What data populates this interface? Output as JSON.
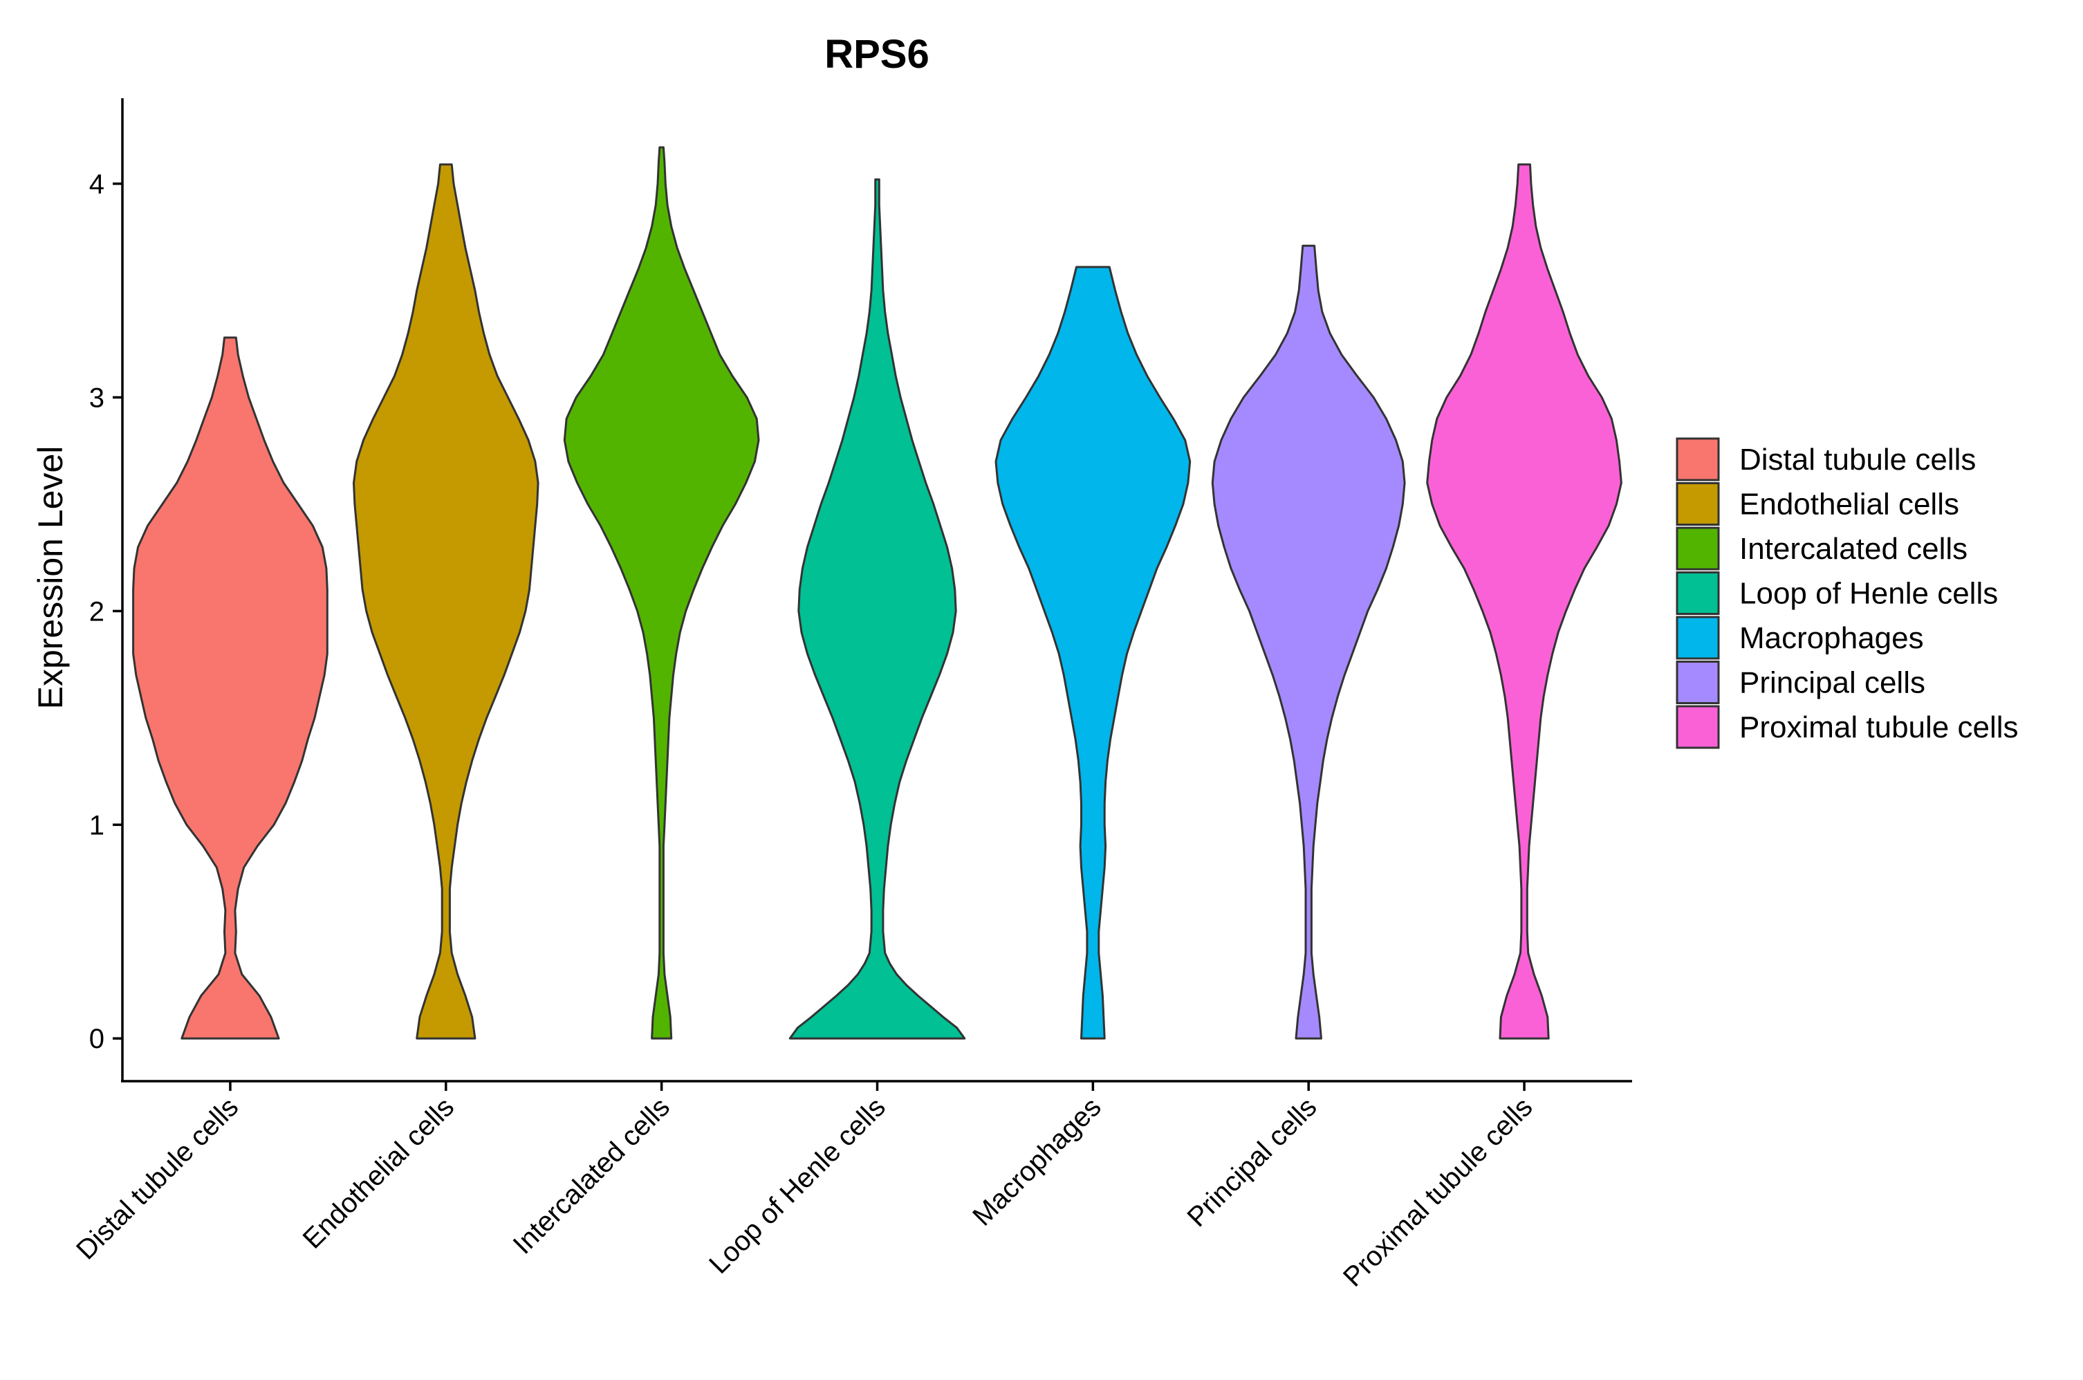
{
  "chart_data": {
    "type": "violin",
    "title": "RPS6",
    "xlabel": "",
    "ylabel": "Expression Level",
    "ylim": [
      -0.2,
      4.4
    ],
    "yticks": [
      0,
      1,
      2,
      3,
      4
    ],
    "categories": [
      "Distal tubule cells",
      "Endothelial cells",
      "Intercalated cells",
      "Loop of Henle cells",
      "Macrophages",
      "Principal cells",
      "Proximal tubule cells"
    ],
    "colors": [
      "#F8766D",
      "#C49A00",
      "#53B400",
      "#00C094",
      "#00B6EB",
      "#A58AFF",
      "#FB61D7"
    ],
    "legend": {
      "position": "right",
      "entries": [
        "Distal tubule cells",
        "Endothelial cells",
        "Intercalated cells",
        "Loop of Henle cells",
        "Macrophages",
        "Principal cells",
        "Proximal tubule cells"
      ]
    },
    "series": [
      {
        "name": "Distal tubule cells",
        "max": 3.28,
        "profile": [
          [
            0,
            0.5
          ],
          [
            0.1,
            0.42
          ],
          [
            0.2,
            0.3
          ],
          [
            0.3,
            0.12
          ],
          [
            0.4,
            0.05
          ],
          [
            0.5,
            0.06
          ],
          [
            0.6,
            0.05
          ],
          [
            0.7,
            0.08
          ],
          [
            0.8,
            0.14
          ],
          [
            0.9,
            0.28
          ],
          [
            1.0,
            0.45
          ],
          [
            1.1,
            0.57
          ],
          [
            1.2,
            0.66
          ],
          [
            1.3,
            0.74
          ],
          [
            1.4,
            0.8
          ],
          [
            1.5,
            0.87
          ],
          [
            1.6,
            0.92
          ],
          [
            1.7,
            0.97
          ],
          [
            1.8,
            1.0
          ],
          [
            1.9,
            1.0
          ],
          [
            2.0,
            1.0
          ],
          [
            2.1,
            1.0
          ],
          [
            2.2,
            0.99
          ],
          [
            2.3,
            0.95
          ],
          [
            2.4,
            0.85
          ],
          [
            2.5,
            0.7
          ],
          [
            2.6,
            0.55
          ],
          [
            2.7,
            0.44
          ],
          [
            2.8,
            0.35
          ],
          [
            2.9,
            0.27
          ],
          [
            3.0,
            0.19
          ],
          [
            3.1,
            0.13
          ],
          [
            3.2,
            0.08
          ],
          [
            3.28,
            0.06
          ]
        ]
      },
      {
        "name": "Endothelial cells",
        "max": 4.09,
        "profile": [
          [
            0,
            0.3
          ],
          [
            0.1,
            0.27
          ],
          [
            0.2,
            0.2
          ],
          [
            0.3,
            0.12
          ],
          [
            0.4,
            0.06
          ],
          [
            0.5,
            0.04
          ],
          [
            0.6,
            0.04
          ],
          [
            0.7,
            0.04
          ],
          [
            0.8,
            0.06
          ],
          [
            0.9,
            0.09
          ],
          [
            1.0,
            0.12
          ],
          [
            1.1,
            0.16
          ],
          [
            1.2,
            0.21
          ],
          [
            1.3,
            0.27
          ],
          [
            1.4,
            0.34
          ],
          [
            1.5,
            0.42
          ],
          [
            1.6,
            0.51
          ],
          [
            1.7,
            0.6
          ],
          [
            1.8,
            0.68
          ],
          [
            1.9,
            0.76
          ],
          [
            2.0,
            0.82
          ],
          [
            2.1,
            0.86
          ],
          [
            2.2,
            0.88
          ],
          [
            2.3,
            0.9
          ],
          [
            2.4,
            0.92
          ],
          [
            2.5,
            0.94
          ],
          [
            2.6,
            0.95
          ],
          [
            2.7,
            0.92
          ],
          [
            2.8,
            0.85
          ],
          [
            2.9,
            0.75
          ],
          [
            3.0,
            0.64
          ],
          [
            3.1,
            0.53
          ],
          [
            3.2,
            0.45
          ],
          [
            3.3,
            0.39
          ],
          [
            3.4,
            0.34
          ],
          [
            3.5,
            0.3
          ],
          [
            3.6,
            0.25
          ],
          [
            3.7,
            0.2
          ],
          [
            3.8,
            0.16
          ],
          [
            3.9,
            0.12
          ],
          [
            4.0,
            0.08
          ],
          [
            4.09,
            0.06
          ]
        ]
      },
      {
        "name": "Intercalated cells",
        "max": 4.17,
        "profile": [
          [
            0,
            0.1
          ],
          [
            0.1,
            0.09
          ],
          [
            0.2,
            0.06
          ],
          [
            0.3,
            0.03
          ],
          [
            0.4,
            0.02
          ],
          [
            0.5,
            0.02
          ],
          [
            0.6,
            0.02
          ],
          [
            0.7,
            0.02
          ],
          [
            0.8,
            0.02
          ],
          [
            0.9,
            0.02
          ],
          [
            1.0,
            0.03
          ],
          [
            1.1,
            0.04
          ],
          [
            1.2,
            0.05
          ],
          [
            1.3,
            0.06
          ],
          [
            1.4,
            0.07
          ],
          [
            1.5,
            0.08
          ],
          [
            1.6,
            0.1
          ],
          [
            1.7,
            0.12
          ],
          [
            1.8,
            0.15
          ],
          [
            1.9,
            0.19
          ],
          [
            2.0,
            0.25
          ],
          [
            2.1,
            0.33
          ],
          [
            2.2,
            0.42
          ],
          [
            2.3,
            0.52
          ],
          [
            2.4,
            0.63
          ],
          [
            2.5,
            0.76
          ],
          [
            2.6,
            0.87
          ],
          [
            2.7,
            0.96
          ],
          [
            2.8,
            1.0
          ],
          [
            2.9,
            0.98
          ],
          [
            3.0,
            0.88
          ],
          [
            3.1,
            0.73
          ],
          [
            3.2,
            0.6
          ],
          [
            3.3,
            0.51
          ],
          [
            3.4,
            0.42
          ],
          [
            3.5,
            0.33
          ],
          [
            3.6,
            0.24
          ],
          [
            3.7,
            0.16
          ],
          [
            3.8,
            0.1
          ],
          [
            3.9,
            0.06
          ],
          [
            4.0,
            0.04
          ],
          [
            4.1,
            0.03
          ],
          [
            4.17,
            0.02
          ]
        ]
      },
      {
        "name": "Loop of Henle cells",
        "max": 4.02,
        "profile": [
          [
            0,
            0.9
          ],
          [
            0.05,
            0.82
          ],
          [
            0.1,
            0.68
          ],
          [
            0.15,
            0.55
          ],
          [
            0.2,
            0.42
          ],
          [
            0.25,
            0.3
          ],
          [
            0.3,
            0.2
          ],
          [
            0.35,
            0.13
          ],
          [
            0.4,
            0.08
          ],
          [
            0.5,
            0.06
          ],
          [
            0.6,
            0.06
          ],
          [
            0.7,
            0.07
          ],
          [
            0.8,
            0.09
          ],
          [
            0.9,
            0.11
          ],
          [
            1.0,
            0.14
          ],
          [
            1.1,
            0.18
          ],
          [
            1.2,
            0.23
          ],
          [
            1.3,
            0.3
          ],
          [
            1.4,
            0.38
          ],
          [
            1.5,
            0.46
          ],
          [
            1.6,
            0.55
          ],
          [
            1.7,
            0.64
          ],
          [
            1.8,
            0.72
          ],
          [
            1.9,
            0.78
          ],
          [
            2.0,
            0.81
          ],
          [
            2.1,
            0.8
          ],
          [
            2.2,
            0.77
          ],
          [
            2.3,
            0.72
          ],
          [
            2.4,
            0.65
          ],
          [
            2.5,
            0.58
          ],
          [
            2.6,
            0.5
          ],
          [
            2.7,
            0.43
          ],
          [
            2.8,
            0.36
          ],
          [
            2.9,
            0.3
          ],
          [
            3.0,
            0.24
          ],
          [
            3.1,
            0.19
          ],
          [
            3.2,
            0.15
          ],
          [
            3.3,
            0.11
          ],
          [
            3.4,
            0.08
          ],
          [
            3.5,
            0.06
          ],
          [
            3.6,
            0.05
          ],
          [
            3.7,
            0.04
          ],
          [
            3.8,
            0.03
          ],
          [
            3.9,
            0.02
          ],
          [
            4.02,
            0.02
          ]
        ]
      },
      {
        "name": "Macrophages",
        "max": 3.61,
        "profile": [
          [
            0,
            0.12
          ],
          [
            0.1,
            0.11
          ],
          [
            0.2,
            0.1
          ],
          [
            0.3,
            0.08
          ],
          [
            0.4,
            0.06
          ],
          [
            0.5,
            0.06
          ],
          [
            0.6,
            0.08
          ],
          [
            0.7,
            0.1
          ],
          [
            0.8,
            0.12
          ],
          [
            0.9,
            0.13
          ],
          [
            1.0,
            0.12
          ],
          [
            1.1,
            0.12
          ],
          [
            1.2,
            0.13
          ],
          [
            1.3,
            0.15
          ],
          [
            1.4,
            0.18
          ],
          [
            1.5,
            0.22
          ],
          [
            1.6,
            0.26
          ],
          [
            1.7,
            0.3
          ],
          [
            1.8,
            0.35
          ],
          [
            1.9,
            0.42
          ],
          [
            2.0,
            0.5
          ],
          [
            2.1,
            0.58
          ],
          [
            2.2,
            0.66
          ],
          [
            2.3,
            0.76
          ],
          [
            2.4,
            0.85
          ],
          [
            2.5,
            0.93
          ],
          [
            2.6,
            0.98
          ],
          [
            2.7,
            1.0
          ],
          [
            2.8,
            0.95
          ],
          [
            2.9,
            0.83
          ],
          [
            3.0,
            0.69
          ],
          [
            3.1,
            0.56
          ],
          [
            3.2,
            0.45
          ],
          [
            3.3,
            0.36
          ],
          [
            3.4,
            0.29
          ],
          [
            3.5,
            0.23
          ],
          [
            3.61,
            0.17
          ]
        ]
      },
      {
        "name": "Principal cells",
        "max": 3.71,
        "profile": [
          [
            0,
            0.13
          ],
          [
            0.1,
            0.11
          ],
          [
            0.2,
            0.08
          ],
          [
            0.3,
            0.05
          ],
          [
            0.4,
            0.03
          ],
          [
            0.5,
            0.03
          ],
          [
            0.6,
            0.03
          ],
          [
            0.7,
            0.03
          ],
          [
            0.8,
            0.04
          ],
          [
            0.9,
            0.05
          ],
          [
            1.0,
            0.07
          ],
          [
            1.1,
            0.09
          ],
          [
            1.2,
            0.12
          ],
          [
            1.3,
            0.15
          ],
          [
            1.4,
            0.19
          ],
          [
            1.5,
            0.24
          ],
          [
            1.6,
            0.3
          ],
          [
            1.7,
            0.37
          ],
          [
            1.8,
            0.45
          ],
          [
            1.9,
            0.53
          ],
          [
            2.0,
            0.61
          ],
          [
            2.1,
            0.71
          ],
          [
            2.2,
            0.8
          ],
          [
            2.3,
            0.87
          ],
          [
            2.4,
            0.93
          ],
          [
            2.5,
            0.97
          ],
          [
            2.6,
            0.99
          ],
          [
            2.7,
            0.97
          ],
          [
            2.8,
            0.9
          ],
          [
            2.9,
            0.8
          ],
          [
            3.0,
            0.67
          ],
          [
            3.1,
            0.5
          ],
          [
            3.2,
            0.34
          ],
          [
            3.3,
            0.22
          ],
          [
            3.4,
            0.14
          ],
          [
            3.5,
            0.1
          ],
          [
            3.6,
            0.08
          ],
          [
            3.71,
            0.06
          ]
        ]
      },
      {
        "name": "Proximal tubule cells",
        "max": 4.09,
        "profile": [
          [
            0,
            0.25
          ],
          [
            0.1,
            0.24
          ],
          [
            0.2,
            0.18
          ],
          [
            0.3,
            0.1
          ],
          [
            0.4,
            0.04
          ],
          [
            0.5,
            0.03
          ],
          [
            0.6,
            0.03
          ],
          [
            0.7,
            0.03
          ],
          [
            0.8,
            0.04
          ],
          [
            0.9,
            0.05
          ],
          [
            1.0,
            0.07
          ],
          [
            1.1,
            0.09
          ],
          [
            1.2,
            0.11
          ],
          [
            1.3,
            0.13
          ],
          [
            1.4,
            0.15
          ],
          [
            1.5,
            0.17
          ],
          [
            1.6,
            0.2
          ],
          [
            1.7,
            0.24
          ],
          [
            1.8,
            0.29
          ],
          [
            1.9,
            0.35
          ],
          [
            2.0,
            0.43
          ],
          [
            2.1,
            0.52
          ],
          [
            2.2,
            0.62
          ],
          [
            2.3,
            0.75
          ],
          [
            2.4,
            0.87
          ],
          [
            2.5,
            0.95
          ],
          [
            2.6,
            1.0
          ],
          [
            2.7,
            0.98
          ],
          [
            2.8,
            0.95
          ],
          [
            2.9,
            0.9
          ],
          [
            3.0,
            0.8
          ],
          [
            3.1,
            0.66
          ],
          [
            3.2,
            0.55
          ],
          [
            3.3,
            0.47
          ],
          [
            3.4,
            0.4
          ],
          [
            3.5,
            0.32
          ],
          [
            3.6,
            0.24
          ],
          [
            3.7,
            0.17
          ],
          [
            3.8,
            0.12
          ],
          [
            3.9,
            0.09
          ],
          [
            4.0,
            0.07
          ],
          [
            4.09,
            0.06
          ]
        ]
      }
    ]
  }
}
